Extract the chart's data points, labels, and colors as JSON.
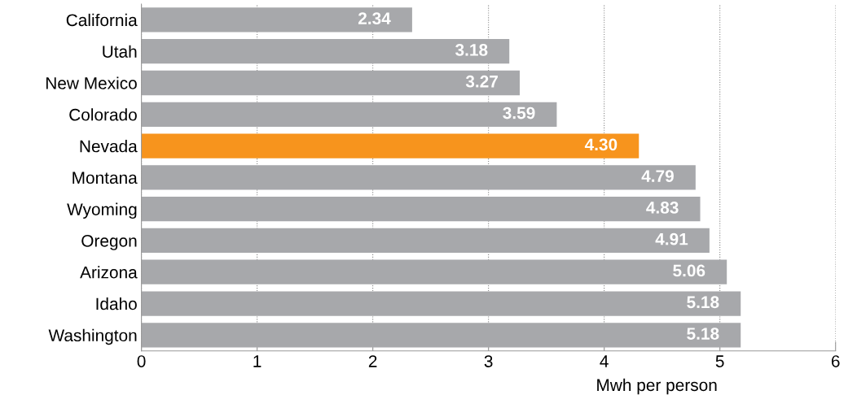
{
  "chart_data": {
    "type": "bar",
    "orientation": "horizontal",
    "xlabel": "Mwh per person",
    "categories": [
      "California",
      "Utah",
      "New Mexico",
      "Colorado",
      "Nevada",
      "Montana",
      "Wyoming",
      "Oregon",
      "Arizona",
      "Idaho",
      "Washington"
    ],
    "values": [
      2.34,
      3.18,
      3.27,
      3.59,
      4.3,
      4.79,
      4.83,
      4.91,
      5.06,
      5.18,
      5.18
    ],
    "value_labels": [
      "2.34",
      "3.18",
      "3.27",
      "3.59",
      "4.30",
      "4.79",
      "4.83",
      "4.91",
      "5.06",
      "5.18",
      "5.18"
    ],
    "colors": [
      "#a7a8ab",
      "#a7a8ab",
      "#a7a8ab",
      "#a7a8ab",
      "#f7941d",
      "#a7a8ab",
      "#a7a8ab",
      "#a7a8ab",
      "#a7a8ab",
      "#a7a8ab",
      "#a7a8ab"
    ],
    "xlim": [
      0,
      6
    ],
    "xticks": [
      0,
      1,
      2,
      3,
      4,
      5,
      6
    ],
    "grid": "x"
  }
}
